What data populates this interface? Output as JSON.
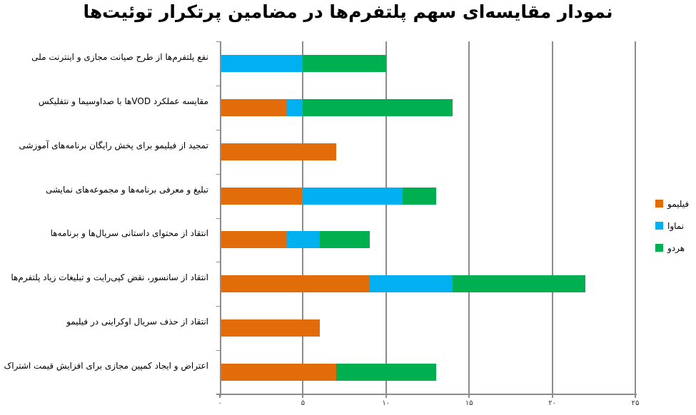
{
  "title": "نمودار مقایسه‌ای سهم پلتفرم‌ها در مضامین پرتکرار توئیت‌ها",
  "colors": {
    "filimo": "#E36C0A",
    "namava": "#00B0F0",
    "hardo": "#00B050"
  },
  "legend": [
    {
      "label": "فیلیمو",
      "color": "#E36C0A"
    },
    {
      "label": "نماوا",
      "color": "#00B0F0"
    },
    {
      "label": "هردو",
      "color": "#00B050"
    }
  ],
  "x_tick_labels": [
    "۰",
    "۵",
    "۱۰",
    "۱۵",
    "۲۰",
    "۲۵"
  ],
  "chart_data": {
    "type": "bar",
    "orientation": "horizontal",
    "stacked": true,
    "title": "نمودار مقایسه‌ای سهم پلتفرم‌ها در مضامین پرتکرار توئیت‌ها",
    "xlabel": "",
    "ylabel": "",
    "xlim": [
      0,
      25
    ],
    "x_ticks": [
      0,
      5,
      10,
      15,
      20,
      25
    ],
    "grid": true,
    "legend_position": "right",
    "categories": [
      "نفع پلتفرم‌ها از طرح صیانت مجازی و اینترنت ملی",
      "مقایسه عملکرد VODها با صداوسیما و نتفلیکس",
      "تمجید از فیلیمو برای پخش رایگان برنامه‌های آموزشی",
      "تبلیغ و معرفی برنامه‌ها و مجموعه‌های نمایشی",
      "انتقاد از محتوای داستانی سریال‌ها و برنامه‌ها",
      "انتقاد از سانسور، نقض کپی‌رایت و تبلیغات زیاد پلتفرم‌ها",
      "انتقاد از حذف سریال اوکراینی در فیلیمو",
      "اعتراض و ایجاد کمپین مجازی برای افزایش قیمت اشتراک"
    ],
    "series": [
      {
        "name": "فیلیمو",
        "color": "#E36C0A",
        "values": [
          0,
          4,
          7,
          5,
          4,
          9,
          6,
          7
        ]
      },
      {
        "name": "نماوا",
        "color": "#00B0F0",
        "values": [
          5,
          1,
          0,
          6,
          2,
          5,
          0,
          0
        ]
      },
      {
        "name": "هردو",
        "color": "#00B050",
        "values": [
          5,
          9,
          0,
          2,
          3,
          8,
          0,
          6
        ]
      }
    ]
  }
}
